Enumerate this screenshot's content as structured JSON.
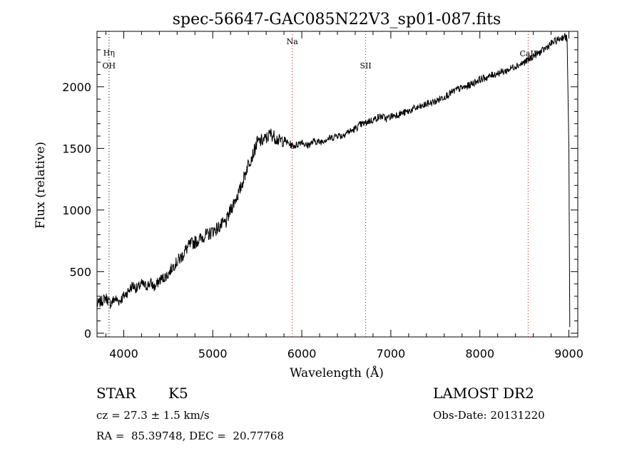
{
  "chart_data": {
    "type": "line",
    "title": "spec-56647-GAC085N22V3_sp01-087.fits",
    "xlabel": "Wavelength (Å)",
    "ylabel": "Flux (relative)",
    "xlim": [
      3700,
      9100
    ],
    "ylim": [
      -30,
      2450
    ],
    "xticks": [
      4000,
      5000,
      6000,
      7000,
      8000,
      9000
    ],
    "yticks": [
      0,
      500,
      1000,
      1500,
      2000
    ],
    "grid": false,
    "series": [
      {
        "x": [
          3700,
          3750,
          3800,
          3850,
          3900,
          3950,
          4000,
          4050,
          4100,
          4150,
          4200,
          4250,
          4300,
          4350,
          4400,
          4450,
          4500,
          4550,
          4600,
          4650,
          4700,
          4750,
          4800,
          4850,
          4900,
          4950,
          5000,
          5050,
          5100,
          5150,
          5200,
          5250,
          5300,
          5350,
          5400,
          5450,
          5500,
          5550,
          5600,
          5650,
          5700,
          5750,
          5800,
          5850,
          5900,
          5950,
          6000,
          6050,
          6100,
          6150,
          6200,
          6250,
          6300,
          6350,
          6400,
          6450,
          6500,
          6550,
          6600,
          6650,
          6700,
          6750,
          6800,
          6850,
          6900,
          6950,
          7000,
          7050,
          7100,
          7150,
          7200,
          7250,
          7300,
          7350,
          7400,
          7450,
          7500,
          7550,
          7600,
          7650,
          7700,
          7750,
          7800,
          7850,
          7900,
          7950,
          8000,
          8050,
          8100,
          8150,
          8200,
          8250,
          8300,
          8350,
          8400,
          8450,
          8500,
          8550,
          8600,
          8650,
          8700,
          8750,
          8800,
          8850,
          8900,
          8950,
          8980,
          9000,
          9010
        ],
        "y": [
          230,
          260,
          290,
          240,
          280,
          260,
          300,
          340,
          390,
          360,
          400,
          380,
          410,
          370,
          430,
          450,
          480,
          540,
          580,
          620,
          680,
          720,
          740,
          760,
          790,
          800,
          830,
          850,
          880,
          900,
          1000,
          1080,
          1150,
          1260,
          1380,
          1450,
          1550,
          1560,
          1580,
          1620,
          1590,
          1560,
          1570,
          1540,
          1520,
          1530,
          1560,
          1520,
          1540,
          1560,
          1550,
          1570,
          1580,
          1590,
          1610,
          1600,
          1630,
          1640,
          1660,
          1690,
          1700,
          1720,
          1730,
          1750,
          1760,
          1740,
          1760,
          1770,
          1780,
          1790,
          1800,
          1820,
          1830,
          1840,
          1860,
          1870,
          1880,
          1900,
          1920,
          1940,
          1960,
          1980,
          1990,
          2000,
          2020,
          2040,
          2060,
          2070,
          2080,
          2100,
          2110,
          2120,
          2130,
          2150,
          2170,
          2180,
          2200,
          2220,
          2250,
          2270,
          2290,
          2320,
          2350,
          2370,
          2390,
          2410,
          2390,
          1500,
          50
        ]
      }
    ],
    "lines": [
      {
        "label": "OH",
        "x": 3835,
        "color": "#000000"
      },
      {
        "label": "Hη",
        "x": 3835,
        "color": "#000000"
      },
      {
        "label": "Na",
        "x": 5893,
        "color": "#cc0000"
      },
      {
        "label": "SII",
        "x": 6717,
        "color": "#cc0000"
      },
      {
        "label": "CaII",
        "x": 8542,
        "color": "#cc0000"
      }
    ]
  },
  "info": {
    "object_class": "STAR",
    "subclass": "K5",
    "survey": "LAMOST DR2",
    "redshift_text": "cz = 27.3 ± 1.5 km/s",
    "obs_date_text": "Obs-Date: 20131220",
    "coords_text": "RA =  85.39748, DEC =  20.77768"
  }
}
